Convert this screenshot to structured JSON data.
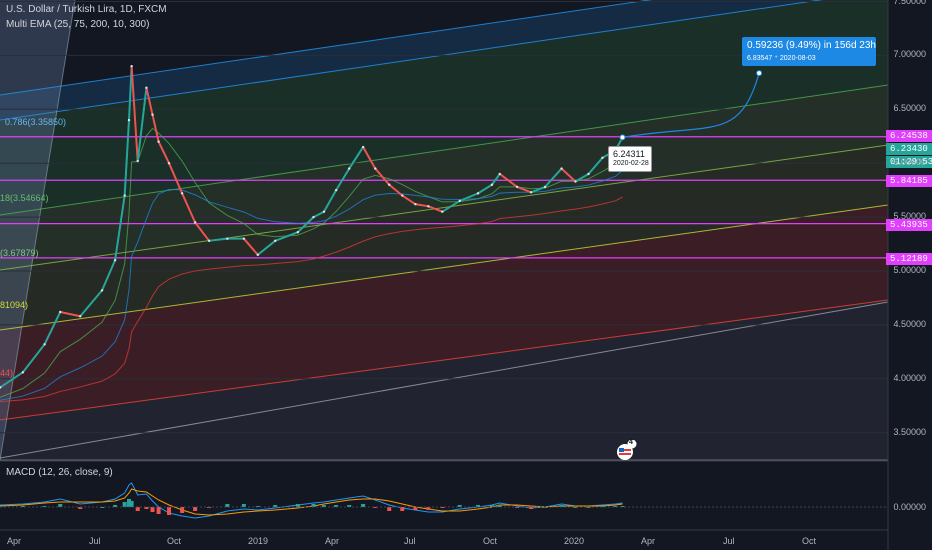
{
  "header": {
    "title": "U.S. Dollar / Turkish Lira, 1D, FXCM",
    "indicator": "Multi EMA (25, 75, 200, 10, 300)"
  },
  "chart_data": {
    "type": "line",
    "symbol": "U.S. Dollar / Turkish Lira",
    "interval": "1D",
    "exchange": "FXCM",
    "x_tick_labels": [
      "Apr",
      "Jul",
      "Oct",
      "2019",
      "Apr",
      "Jul",
      "Oct",
      "2020",
      "Apr",
      "Jul",
      "Oct"
    ],
    "y_tick_labels": [
      "7.50000",
      "7.00000",
      "6.50000",
      "6.00000",
      "5.50000",
      "5.00000",
      "4.50000",
      "4.00000",
      "3.50000"
    ],
    "ylim": [
      3.25,
      7.5
    ],
    "x_dates": [
      "2018-02-15",
      "2018-03-15",
      "2018-04-10",
      "2018-05-05",
      "2018-05-23",
      "2018-06-15",
      "2018-07-10",
      "2018-07-25",
      "2018-08-05",
      "2018-08-10",
      "2018-08-13",
      "2018-08-20",
      "2018-08-30",
      "2018-09-06",
      "2018-09-13",
      "2018-09-25",
      "2018-10-10",
      "2018-10-25",
      "2018-11-10",
      "2018-12-01",
      "2018-12-20",
      "2019-01-05",
      "2019-01-25",
      "2019-02-20",
      "2019-03-10",
      "2019-03-22",
      "2019-04-05",
      "2019-04-20",
      "2019-05-06",
      "2019-05-20",
      "2019-06-05",
      "2019-06-20",
      "2019-07-05",
      "2019-07-20",
      "2019-08-05",
      "2019-08-25",
      "2019-09-15",
      "2019-10-01",
      "2019-10-10",
      "2019-10-30",
      "2019-11-15",
      "2019-12-01",
      "2019-12-20",
      "2020-01-05",
      "2020-01-20",
      "2020-02-05",
      "2020-02-20",
      "2020-02-28"
    ],
    "close": [
      3.78,
      3.92,
      4.06,
      4.32,
      4.62,
      4.58,
      4.82,
      5.1,
      5.7,
      6.4,
      6.9,
      6.02,
      6.7,
      6.45,
      6.2,
      6.0,
      5.72,
      5.45,
      5.28,
      5.3,
      5.3,
      5.15,
      5.28,
      5.36,
      5.5,
      5.55,
      5.75,
      5.95,
      6.15,
      5.95,
      5.8,
      5.7,
      5.62,
      5.6,
      5.55,
      5.65,
      5.72,
      5.8,
      5.9,
      5.78,
      5.73,
      5.78,
      5.95,
      5.83,
      5.9,
      6.05,
      6.12,
      6.24
    ],
    "macd": {
      "name": "MACD (12, 26, close, 9)",
      "y_tick_labels": [
        "0.00000"
      ],
      "ylim": [
        -0.15,
        0.28
      ],
      "macd_line": [
        0.01,
        0.02,
        0.03,
        0.05,
        0.08,
        0.03,
        0.05,
        0.08,
        0.14,
        0.22,
        0.24,
        0.12,
        0.13,
        0.06,
        0.0,
        -0.06,
        -0.09,
        -0.11,
        -0.09,
        -0.04,
        -0.02,
        -0.03,
        -0.01,
        0.02,
        0.04,
        0.05,
        0.07,
        0.09,
        0.11,
        0.07,
        0.02,
        -0.01,
        -0.03,
        -0.05,
        -0.05,
        -0.02,
        0.0,
        0.02,
        0.04,
        0.01,
        -0.01,
        0.0,
        0.03,
        0.01,
        0.01,
        0.02,
        0.03,
        0.04
      ],
      "signal_line": [
        0.0,
        0.01,
        0.02,
        0.04,
        0.05,
        0.05,
        0.05,
        0.06,
        0.09,
        0.14,
        0.18,
        0.16,
        0.15,
        0.11,
        0.07,
        0.02,
        -0.03,
        -0.07,
        -0.08,
        -0.07,
        -0.05,
        -0.04,
        -0.03,
        -0.01,
        0.01,
        0.03,
        0.05,
        0.07,
        0.08,
        0.08,
        0.06,
        0.03,
        0.0,
        -0.02,
        -0.04,
        -0.04,
        -0.02,
        0.0,
        0.02,
        0.02,
        0.01,
        0.0,
        0.01,
        0.01,
        0.01,
        0.01,
        0.02,
        0.03
      ]
    },
    "fib_levels": [
      {
        "label": "0.786(3.35850)",
        "color": "#2196f3"
      },
      {
        "label": "18(3.54664)",
        "color": "#4caf50"
      },
      {
        "label": "(3.67879)",
        "color": "#81c784"
      },
      {
        "label": "81094)",
        "color": "#cddc39"
      },
      {
        "label": "44)",
        "color": "#f44336"
      }
    ],
    "horizontal_levels": [
      {
        "value": "6.24538",
        "price": 6.24538
      },
      {
        "value": "5.84185",
        "price": 5.84185
      },
      {
        "value": "5.43935",
        "price": 5.43935
      },
      {
        "value": "5.12189",
        "price": 5.12189
      }
    ],
    "price_tags": [
      {
        "text": "6.23430",
        "price": 6.14,
        "color": "#26a69a"
      },
      {
        "text": "01:29:53",
        "price": 6.0,
        "color": "#26a69a"
      }
    ],
    "projection": {
      "line1": "0.59236 (9.49%) in 156d 23h",
      "line2": "6.83547 ⁺  2020-08-03",
      "target_date": "2020-08-03",
      "target_price": 6.83547
    },
    "price_label": {
      "value": "6.24311",
      "date": "2020-02-28"
    },
    "event_badge": "4",
    "colors": {
      "background": "#131722",
      "level_line": "#e040fb",
      "up": "#26a69a",
      "down": "#ef5350",
      "projection": "#1e88e5"
    }
  }
}
